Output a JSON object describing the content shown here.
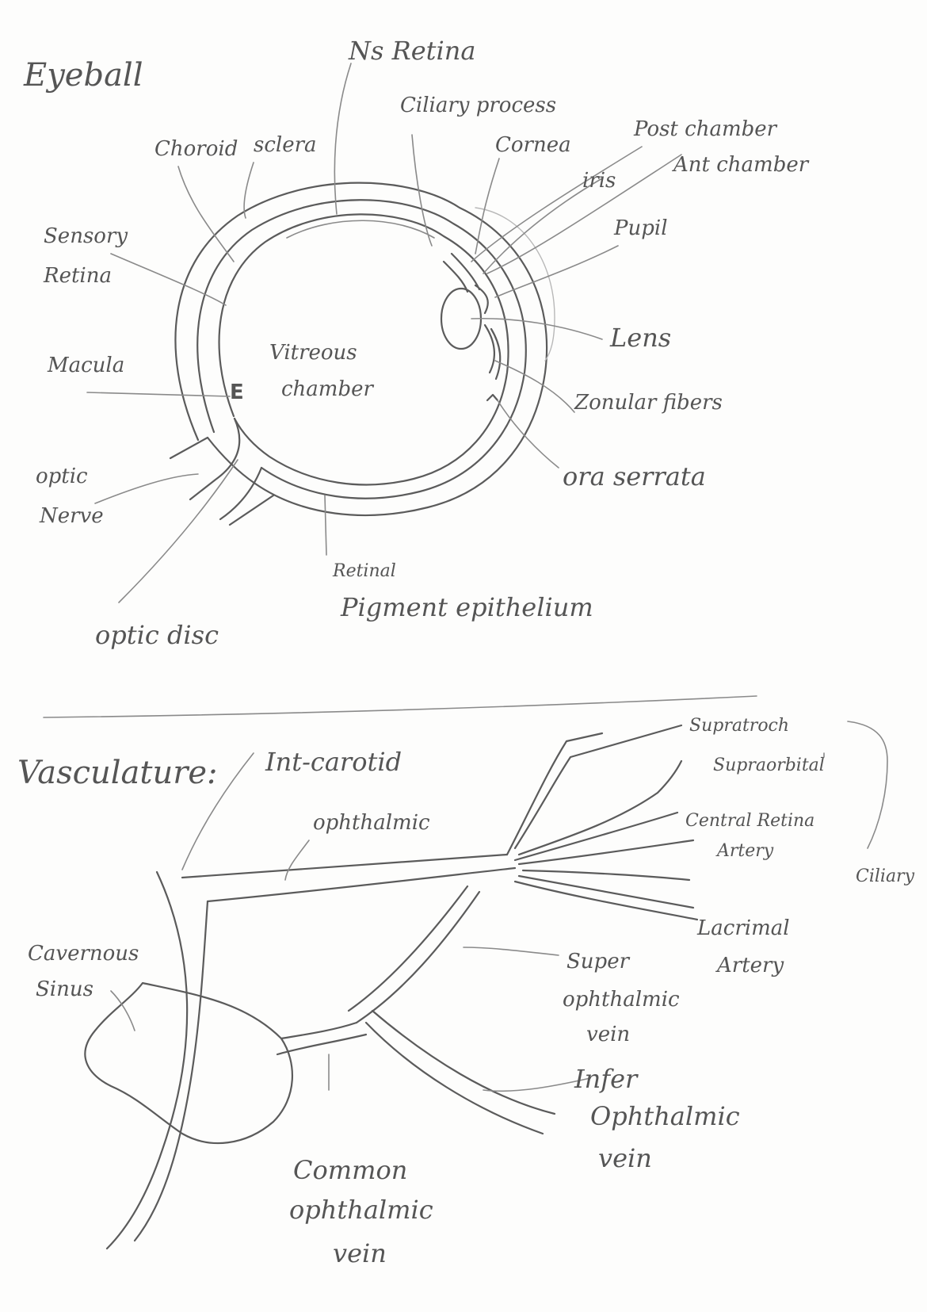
{
  "sections": {
    "eyeball_title": "Eyeball",
    "vasculature_title": "Vasculature:"
  },
  "eye_labels": {
    "ns_retina": "Ns Retina",
    "ciliary_process": "Ciliary process",
    "choroid": "Choroid",
    "sclera": "sclera",
    "cornea": "Cornea",
    "post_chamber": "Post chamber",
    "iris": "iris",
    "ant_chamber": "Ant chamber",
    "sensory_retina_1": "Sensory",
    "sensory_retina_2": "Retina",
    "pupil": "Pupil",
    "macula": "Macula",
    "vitreous_1": "Vitreous",
    "vitreous_2": "chamber",
    "lens": "Lens",
    "zonular": "Zonular fibers",
    "optic_nerve_1": "optic",
    "optic_nerve_2": "Nerve",
    "ora_serrata": "ora serrata",
    "retinal_pigment_1": "Retinal",
    "retinal_pigment_2": "Pigment epithelium",
    "optic_disc": "optic disc"
  },
  "vasc_labels": {
    "int_carotid": "Int-carotid",
    "ophthalmic": "ophthalmic",
    "supratrochlear": "Supratroch",
    "supraorbital": "Supraorbital",
    "central_retinal_1": "Central Retina",
    "central_retinal_2": "Artery",
    "ciliary": "Ciliary",
    "lacrimal_1": "Lacrimal",
    "lacrimal_2": "Artery",
    "cavernous_1": "Cavernous",
    "cavernous_2": "Sinus",
    "sup_oph_1": "Super",
    "sup_oph_2": "ophthalmic",
    "sup_oph_3": "vein",
    "inf_oph_1": "Infer",
    "inf_oph_2": "Ophthalmic",
    "inf_oph_3": "vein",
    "common_oph_1": "Common",
    "common_oph_2": "ophthalmic",
    "common_oph_3": "vein"
  }
}
